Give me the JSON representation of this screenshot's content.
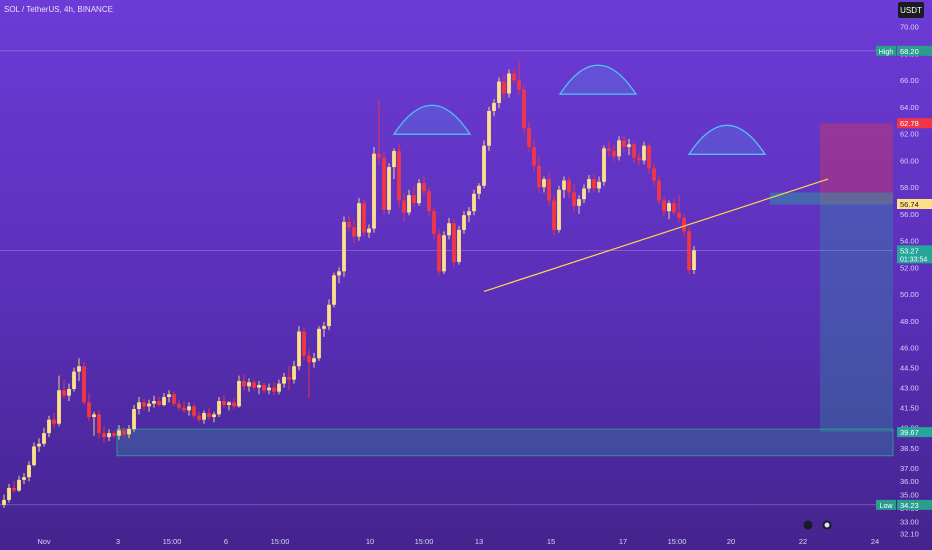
{
  "header": {
    "symbol": "SOL / TetherUS, 4h, BINANCE",
    "quote_currency": "USDT"
  },
  "colors": {
    "up": "#ffe08a",
    "down": "#f23645",
    "neckline": "#ffd54f",
    "shoulder_arc": "#4fc3f7",
    "demand_zone": "#26a69a",
    "target_zone": "#f23645"
  },
  "chart_data": {
    "type": "candlestick",
    "y_axis": {
      "range": [
        31.9,
        72.0
      ],
      "ticks": [
        "70.00",
        "68.00",
        "66.00",
        "64.00",
        "62.00",
        "60.00",
        "58.00",
        "56.00",
        "54.00",
        "52.00",
        "50.00",
        "48.00",
        "46.00",
        "44.50",
        "43.00",
        "41.50",
        "40.00",
        "38.50",
        "37.00",
        "36.00",
        "35.00",
        "34.00",
        "33.00",
        "32.10"
      ]
    },
    "x_axis": {
      "ticks": [
        "Nov",
        "3",
        "15:00",
        "6",
        "15:00",
        "10",
        "15:00",
        "13",
        "15",
        "17",
        "15:00",
        "20",
        "22",
        "24"
      ],
      "range": [
        0,
        166
      ]
    },
    "price_labels": [
      {
        "label": "High",
        "value": 68.2,
        "style": "high"
      },
      {
        "label": "",
        "value": 62.78,
        "style": "target"
      },
      {
        "label": "",
        "value": 56.74,
        "style": "entry"
      },
      {
        "label": "",
        "value": 53.27,
        "style": "last",
        "sub": "01:33:54"
      },
      {
        "label": "",
        "value": 39.67,
        "style": "stop"
      },
      {
        "label": "Low",
        "value": 34.23,
        "style": "low"
      }
    ],
    "horizontal_lines": [
      68.2,
      53.27,
      34.23
    ],
    "candles": [
      [
        34.23,
        35.0,
        34.0,
        34.6
      ],
      [
        34.6,
        35.8,
        34.4,
        35.5
      ],
      [
        35.5,
        36.0,
        35.1,
        35.3
      ],
      [
        35.3,
        36.4,
        35.2,
        36.1
      ],
      [
        36.1,
        36.6,
        35.8,
        36.3
      ],
      [
        36.3,
        37.5,
        36.0,
        37.2
      ],
      [
        37.2,
        38.9,
        37.1,
        38.6
      ],
      [
        38.6,
        39.2,
        38.2,
        38.8
      ],
      [
        38.8,
        40.0,
        38.6,
        39.6
      ],
      [
        39.6,
        40.9,
        39.3,
        40.6
      ],
      [
        40.6,
        41.1,
        40.0,
        40.3
      ],
      [
        40.3,
        43.9,
        40.1,
        42.8
      ],
      [
        42.8,
        43.6,
        42.2,
        42.4
      ],
      [
        42.4,
        43.3,
        42.0,
        42.9
      ],
      [
        42.9,
        44.5,
        42.7,
        44.2
      ],
      [
        44.2,
        45.2,
        43.5,
        44.6
      ],
      [
        44.6,
        44.9,
        41.7,
        41.9
      ],
      [
        41.9,
        42.6,
        40.5,
        40.8
      ],
      [
        40.8,
        41.2,
        39.4,
        41.0
      ],
      [
        41.0,
        41.3,
        39.2,
        39.6
      ],
      [
        39.6,
        40.1,
        38.9,
        39.3
      ],
      [
        39.3,
        39.9,
        39.0,
        39.6
      ],
      [
        39.6,
        39.8,
        39.2,
        39.4
      ],
      [
        39.4,
        40.2,
        39.1,
        39.8
      ],
      [
        39.8,
        40.0,
        39.3,
        39.5
      ],
      [
        39.5,
        40.2,
        39.2,
        39.9
      ],
      [
        39.9,
        41.7,
        39.7,
        41.4
      ],
      [
        41.4,
        42.3,
        41.0,
        41.9
      ],
      [
        41.9,
        42.2,
        41.3,
        41.6
      ],
      [
        41.6,
        42.1,
        41.2,
        41.8
      ],
      [
        41.8,
        42.4,
        41.5,
        42.0
      ],
      [
        42.0,
        42.3,
        41.6,
        41.7
      ],
      [
        41.7,
        42.6,
        41.6,
        42.3
      ],
      [
        42.3,
        42.8,
        41.9,
        42.5
      ],
      [
        42.5,
        42.7,
        41.6,
        41.8
      ],
      [
        41.8,
        42.1,
        41.3,
        41.5
      ],
      [
        41.5,
        42.0,
        41.1,
        41.3
      ],
      [
        41.3,
        41.9,
        40.9,
        41.6
      ],
      [
        41.6,
        41.8,
        40.7,
        40.9
      ],
      [
        40.9,
        41.2,
        40.4,
        40.6
      ],
      [
        40.6,
        41.3,
        40.3,
        41.1
      ],
      [
        41.1,
        41.5,
        40.6,
        40.8
      ],
      [
        40.8,
        41.2,
        40.4,
        41.0
      ],
      [
        41.0,
        42.3,
        40.8,
        42.0
      ],
      [
        42.0,
        42.4,
        41.5,
        41.7
      ],
      [
        41.7,
        42.0,
        41.3,
        41.9
      ],
      [
        41.9,
        42.2,
        41.4,
        41.6
      ],
      [
        41.6,
        43.9,
        41.5,
        43.5
      ],
      [
        43.5,
        44.0,
        42.8,
        43.1
      ],
      [
        43.1,
        43.7,
        42.7,
        43.4
      ],
      [
        43.4,
        43.6,
        42.8,
        43.0
      ],
      [
        43.0,
        43.5,
        42.5,
        43.2
      ],
      [
        43.2,
        43.4,
        42.6,
        42.8
      ],
      [
        42.8,
        43.3,
        42.5,
        43.0
      ],
      [
        43.0,
        43.4,
        42.4,
        42.7
      ],
      [
        42.7,
        43.6,
        42.5,
        43.3
      ],
      [
        43.3,
        44.1,
        43.0,
        43.8
      ],
      [
        43.8,
        44.6,
        42.8,
        43.6
      ],
      [
        43.6,
        45.0,
        43.3,
        44.6
      ],
      [
        44.6,
        47.6,
        44.3,
        47.2
      ],
      [
        47.2,
        47.5,
        45.0,
        45.4
      ],
      [
        45.4,
        45.9,
        42.2,
        44.9
      ],
      [
        44.9,
        45.6,
        44.5,
        45.2
      ],
      [
        45.2,
        47.6,
        45.0,
        47.4
      ],
      [
        47.4,
        47.9,
        46.8,
        47.6
      ],
      [
        47.6,
        49.6,
        47.3,
        49.2
      ],
      [
        49.2,
        51.6,
        49.0,
        51.4
      ],
      [
        51.4,
        52.0,
        50.8,
        51.7
      ],
      [
        51.7,
        55.8,
        51.3,
        55.4
      ],
      [
        55.4,
        55.9,
        54.6,
        55.0
      ],
      [
        55.0,
        55.6,
        53.8,
        54.3
      ],
      [
        54.3,
        57.2,
        54.0,
        56.8
      ],
      [
        56.8,
        57.1,
        54.3,
        54.6
      ],
      [
        54.6,
        55.2,
        54.2,
        54.9
      ],
      [
        54.9,
        61.0,
        54.6,
        60.5
      ],
      [
        60.5,
        64.5,
        59.6,
        60.2
      ],
      [
        60.2,
        60.6,
        55.9,
        56.3
      ],
      [
        56.3,
        59.8,
        56.0,
        59.5
      ],
      [
        59.5,
        60.9,
        58.6,
        60.7
      ],
      [
        60.7,
        61.2,
        56.4,
        57.0
      ],
      [
        57.0,
        57.6,
        55.4,
        56.1
      ],
      [
        56.1,
        57.8,
        55.9,
        57.4
      ],
      [
        57.4,
        58.1,
        56.5,
        56.8
      ],
      [
        56.8,
        58.6,
        56.6,
        58.3
      ],
      [
        58.3,
        58.8,
        57.3,
        57.7
      ],
      [
        57.7,
        58.0,
        55.8,
        56.2
      ],
      [
        56.2,
        56.5,
        54.1,
        54.5
      ],
      [
        54.5,
        54.9,
        51.4,
        51.7
      ],
      [
        51.7,
        54.7,
        51.5,
        54.4
      ],
      [
        54.4,
        55.7,
        54.1,
        55.3
      ],
      [
        55.3,
        55.6,
        52.0,
        52.4
      ],
      [
        52.4,
        55.1,
        52.2,
        54.8
      ],
      [
        54.8,
        56.2,
        54.5,
        55.9
      ],
      [
        55.9,
        56.5,
        55.4,
        56.2
      ],
      [
        56.2,
        57.8,
        55.9,
        57.5
      ],
      [
        57.5,
        58.3,
        57.1,
        58.1
      ],
      [
        58.1,
        61.5,
        57.9,
        61.1
      ],
      [
        61.1,
        64.0,
        60.7,
        63.7
      ],
      [
        63.7,
        64.6,
        63.3,
        64.3
      ],
      [
        64.3,
        66.2,
        63.9,
        65.9
      ],
      [
        65.9,
        66.4,
        64.6,
        65.0
      ],
      [
        65.0,
        66.8,
        64.7,
        66.5
      ],
      [
        66.5,
        66.9,
        65.8,
        66.0
      ],
      [
        66.0,
        67.4,
        64.9,
        65.3
      ],
      [
        65.3,
        65.6,
        62.0,
        62.4
      ],
      [
        62.4,
        62.9,
        60.6,
        61.0
      ],
      [
        61.0,
        61.6,
        59.2,
        59.6
      ],
      [
        59.6,
        60.3,
        57.6,
        58.0
      ],
      [
        58.0,
        58.8,
        57.6,
        58.6
      ],
      [
        58.6,
        59.1,
        56.6,
        57.0
      ],
      [
        57.0,
        57.4,
        54.4,
        54.8
      ],
      [
        54.8,
        58.1,
        54.6,
        57.8
      ],
      [
        57.8,
        58.8,
        57.2,
        58.5
      ],
      [
        58.5,
        58.8,
        57.2,
        57.6
      ],
      [
        57.6,
        58.2,
        56.2,
        56.6
      ],
      [
        56.6,
        57.4,
        56.0,
        57.1
      ],
      [
        57.1,
        58.2,
        56.8,
        57.9
      ],
      [
        57.9,
        58.9,
        57.6,
        58.6
      ],
      [
        58.6,
        59.0,
        57.6,
        57.9
      ],
      [
        57.9,
        58.8,
        57.6,
        58.4
      ],
      [
        58.4,
        61.1,
        58.1,
        60.9
      ],
      [
        60.9,
        61.4,
        60.3,
        60.7
      ],
      [
        60.7,
        61.2,
        59.9,
        60.3
      ],
      [
        60.3,
        61.8,
        60.0,
        61.5
      ],
      [
        61.5,
        61.9,
        60.6,
        61.0
      ],
      [
        61.0,
        61.6,
        60.4,
        61.2
      ],
      [
        61.2,
        61.4,
        59.8,
        60.2
      ],
      [
        60.2,
        60.6,
        59.6,
        60.0
      ],
      [
        60.0,
        61.4,
        59.7,
        61.1
      ],
      [
        61.1,
        61.3,
        59.0,
        59.4
      ],
      [
        59.4,
        59.8,
        58.1,
        58.5
      ],
      [
        58.5,
        58.9,
        56.7,
        57.0
      ],
      [
        57.0,
        57.3,
        55.8,
        56.2
      ],
      [
        56.2,
        57.0,
        55.6,
        56.8
      ],
      [
        56.8,
        57.2,
        55.9,
        56.1
      ],
      [
        56.1,
        57.4,
        55.3,
        55.7
      ],
      [
        55.7,
        56.0,
        54.3,
        54.7
      ],
      [
        54.7,
        55.0,
        51.5,
        51.8
      ],
      [
        51.8,
        53.6,
        51.5,
        53.27
      ]
    ]
  }
}
